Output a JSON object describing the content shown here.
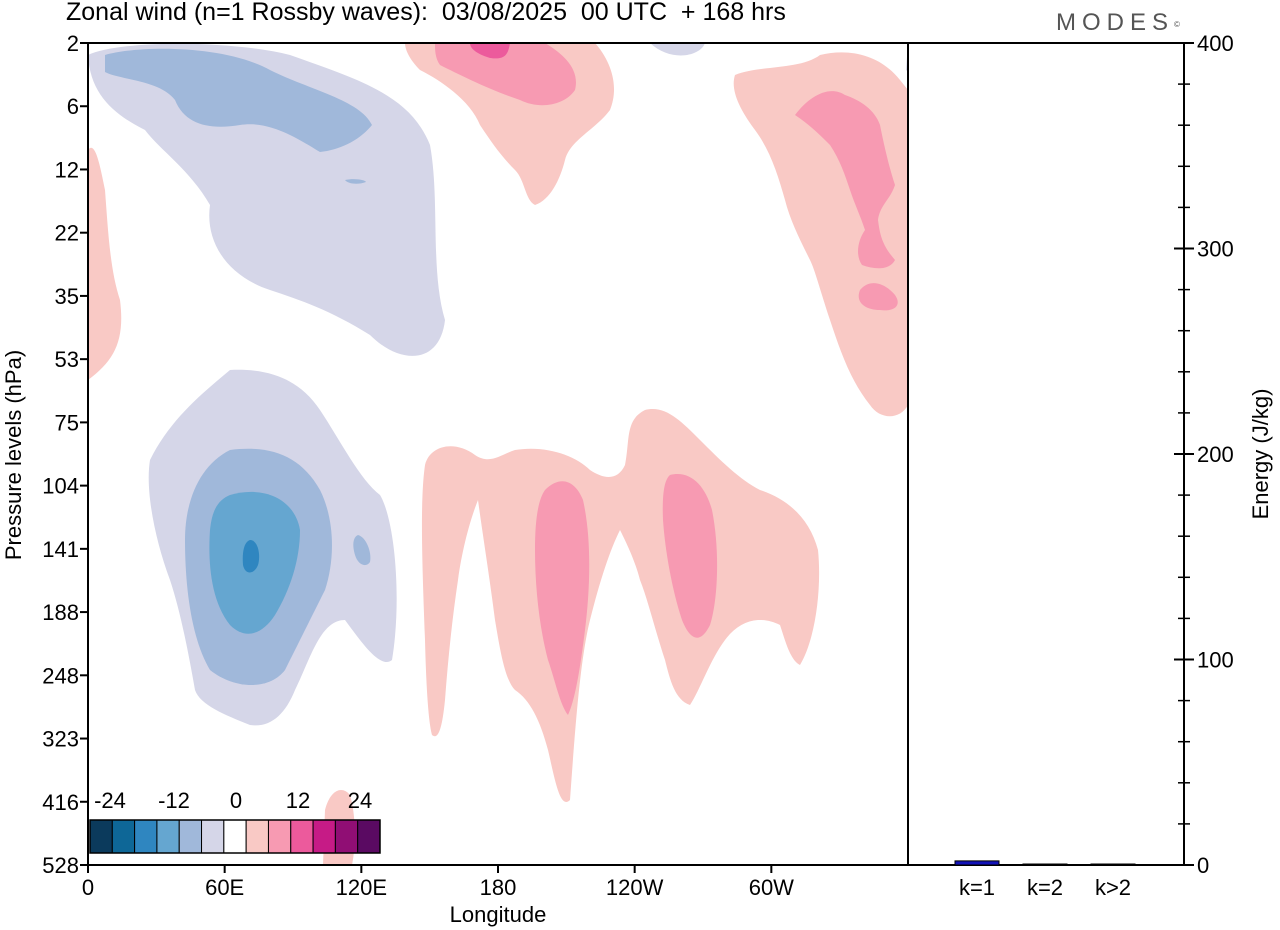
{
  "title": "Zonal wind (n=1 Rossby waves):  03/08/2025  00 UTC  + 168 hrs",
  "brand": "MODES",
  "brand_mark": "©",
  "colors": {
    "neg_levels": [
      "#0b3a5c",
      "#0e6797",
      "#2f86c0",
      "#65a6d0",
      "#a0b8da",
      "#d5d6e8"
    ],
    "zero": "#ffffff",
    "pos_levels": [
      "#f9c9c5",
      "#f79ab2",
      "#ec5a9c",
      "#c61b86",
      "#900e74",
      "#5a0a62"
    ],
    "energy_bar": "#1212b8"
  },
  "chart_data": [
    {
      "type": "heatmap",
      "title": "Zonal wind (n=1 Rossby waves):  03/08/2025  00 UTC  + 168 hrs",
      "xlabel": "Longitude",
      "ylabel": "Pressure levels (hPa)",
      "x_ticks": [
        "0",
        "60E",
        "120E",
        "180",
        "120W",
        "60W"
      ],
      "y_ticks": [
        "2",
        "6",
        "12",
        "22",
        "35",
        "53",
        "75",
        "104",
        "141",
        "188",
        "248",
        "323",
        "416",
        "528"
      ],
      "xlim": [
        0,
        360
      ],
      "colorbar_labels": [
        "-24",
        "-12",
        "0",
        "12",
        "24"
      ],
      "colorbar_levels": [
        -30,
        -24,
        -18,
        -12,
        -6,
        -3,
        3,
        6,
        12,
        18,
        24,
        30
      ],
      "features": [
        {
          "name": "negative upper-level region",
          "lon_range": [
            0,
            155
          ],
          "p_range": [
            2,
            53
          ],
          "min_value": -12
        },
        {
          "name": "negative mid-level region",
          "lon_range": [
            27,
            137
          ],
          "p_range": [
            53,
            323
          ],
          "min_value": -18
        },
        {
          "name": "positive upper-level region",
          "lon_range": [
            140,
            230
          ],
          "p_range": [
            2,
            22
          ],
          "max_value": 18
        },
        {
          "name": "positive eastern upper region",
          "lon_range": [
            280,
            360
          ],
          "p_range": [
            2,
            75
          ],
          "max_value": 12
        },
        {
          "name": "positive mid-level region",
          "lon_range": [
            147,
            322
          ],
          "p_range": [
            75,
            416
          ],
          "max_value": 12
        }
      ]
    },
    {
      "type": "bar",
      "categories": [
        "k=1",
        "k=2",
        "k>2"
      ],
      "values": [
        2,
        0.3,
        0.3
      ],
      "ylabel": "Energy (J/kg)",
      "ylim": [
        0,
        400
      ],
      "y_ticks": [
        0,
        100,
        200,
        300,
        400
      ]
    }
  ]
}
